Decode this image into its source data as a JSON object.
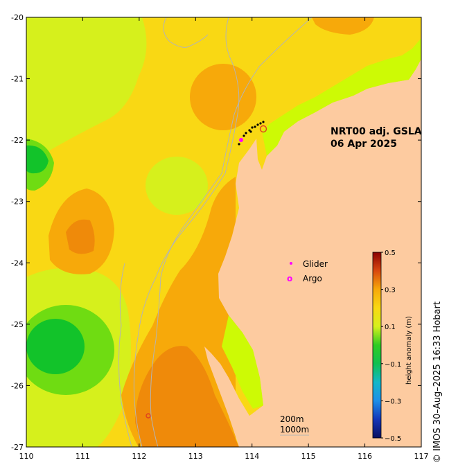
{
  "title_line1": "NRT00 adj. GSLA",
  "title_line2": "06 Apr 2025",
  "lon_ticks": [
    "110",
    "111",
    "112",
    "113",
    "114",
    "115",
    "116",
    "117"
  ],
  "lat_ticks": [
    "-20",
    "-21",
    "-22",
    "-23",
    "-24",
    "-25",
    "-26",
    "-27"
  ],
  "legend": {
    "glider": "Glider",
    "argo": "Argo",
    "argo_symbol": "o"
  },
  "contours": {
    "c200": "200m",
    "c1000": "1000m"
  },
  "colorbar": {
    "label": "height anomaly (m)",
    "ticks": [
      "0.5",
      "0.3",
      "0.1",
      "−0.1",
      "−0.3",
      "−0.5"
    ]
  },
  "credit": "© IMOS 30–Aug–2025 16:33 Hobart",
  "colors": {
    "land": "#fdcba0",
    "yellow": "#f9d814",
    "orange": "#f7a90a",
    "dark_orange": "#ef8a0a",
    "light_green": "#d6f01c",
    "lime": "#cdfa05",
    "green": "#6fdc12",
    "dark_green": "#12c32a",
    "glider": "#ff00ff"
  }
}
